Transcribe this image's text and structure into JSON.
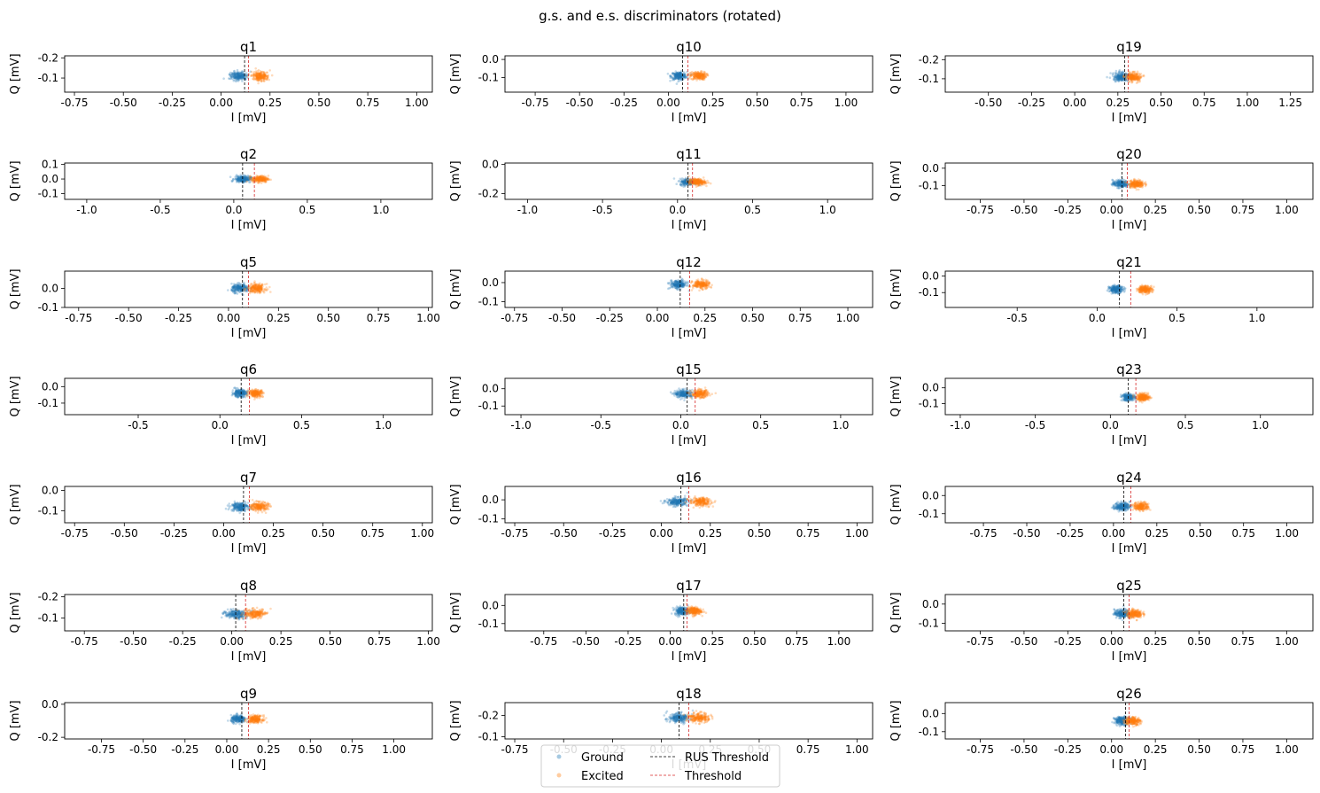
{
  "figure_title": "g.s. and e.s. discriminators (rotated)",
  "colors": {
    "ground": "#1f77b4",
    "excited": "#ff7f0e",
    "rus_threshold": "#000000",
    "threshold": "#d62728"
  },
  "legend": {
    "position": "bottom-center",
    "entries": [
      {
        "label": "Ground",
        "kind": "marker",
        "color": "#1f77b4"
      },
      {
        "label": "Excited",
        "kind": "marker",
        "color": "#ff7f0e"
      },
      {
        "label": "RUS Threshold",
        "kind": "line",
        "color": "#000000"
      },
      {
        "label": "Threshold",
        "kind": "line",
        "color": "#d62728"
      }
    ]
  },
  "chart_data": [
    {
      "type": "scatter",
      "title": "q1",
      "xlabel": "I [mV]",
      "ylabel": "Q [mV]",
      "xlim": [
        -0.8,
        1.08
      ],
      "ylim": [
        -0.21,
        -0.03
      ],
      "xticks": [
        "-0.75",
        "-0.50",
        "-0.25",
        "0.00",
        "0.25",
        "0.50",
        "0.75",
        "1.00"
      ],
      "yticks": [
        "-0.1",
        "-0.2"
      ],
      "y_inverted": true,
      "ground_center": [
        0.09,
        -0.11
      ],
      "excited_center": [
        0.2,
        -0.11
      ],
      "spread": [
        0.04,
        0.02
      ],
      "rus_threshold": 0.12,
      "threshold": 0.14
    },
    {
      "type": "scatter",
      "title": "q10",
      "xlabel": "I [mV]",
      "ylabel": "Q [mV]",
      "xlim": [
        -0.92,
        1.15
      ],
      "ylim": [
        -0.18,
        0.02
      ],
      "xticks": [
        "-0.75",
        "-0.50",
        "-0.25",
        "0.00",
        "0.25",
        "0.50",
        "0.75",
        "1.00"
      ],
      "yticks": [
        "0.0",
        "-0.1"
      ],
      "ground_center": [
        0.06,
        -0.09
      ],
      "excited_center": [
        0.17,
        -0.09
      ],
      "spread": [
        0.04,
        0.02
      ],
      "rus_threshold": 0.08,
      "threshold": 0.11
    },
    {
      "type": "scatter",
      "title": "q19",
      "xlabel": "I [mV]",
      "ylabel": "Q [mV]",
      "xlim": [
        -0.75,
        1.38
      ],
      "ylim": [
        -0.22,
        -0.03
      ],
      "xticks": [
        "-0.50",
        "-0.25",
        "0.00",
        "0.25",
        "0.50",
        "0.75",
        "1.00",
        "1.25"
      ],
      "yticks": [
        "-0.1",
        "-0.2"
      ],
      "y_inverted": true,
      "ground_center": [
        0.27,
        -0.11
      ],
      "excited_center": [
        0.34,
        -0.11
      ],
      "spread": [
        0.04,
        0.02
      ],
      "rus_threshold": 0.29,
      "threshold": 0.31
    },
    {
      "type": "scatter",
      "title": "q2",
      "xlabel": "I [mV]",
      "ylabel": "Q [mV]",
      "xlim": [
        -1.15,
        1.35
      ],
      "ylim": [
        -0.14,
        0.11
      ],
      "xticks": [
        "-1.0",
        "-0.5",
        "0.0",
        "0.5",
        "1.0"
      ],
      "yticks": [
        "0.1",
        "0.0",
        "-0.1"
      ],
      "ground_center": [
        0.06,
        0.0
      ],
      "excited_center": [
        0.18,
        0.0
      ],
      "spread": [
        0.05,
        0.02
      ],
      "rus_threshold": 0.06,
      "threshold": 0.14
    },
    {
      "type": "scatter",
      "title": "q11",
      "xlabel": "I [mV]",
      "ylabel": "Q [mV]",
      "xlim": [
        -1.15,
        1.3
      ],
      "ylim": [
        -0.24,
        0.01
      ],
      "xticks": [
        "-1.0",
        "-0.5",
        "0.0",
        "0.5",
        "1.0"
      ],
      "yticks": [
        "0.0",
        "-0.2"
      ],
      "ground_center": [
        0.07,
        -0.12
      ],
      "excited_center": [
        0.13,
        -0.12
      ],
      "spread": [
        0.05,
        0.02
      ],
      "rus_threshold": 0.07,
      "threshold": 0.1
    },
    {
      "type": "scatter",
      "title": "q20",
      "xlabel": "I [mV]",
      "ylabel": "Q [mV]",
      "xlim": [
        -0.95,
        1.15
      ],
      "ylim": [
        -0.18,
        0.03
      ],
      "xticks": [
        "-0.75",
        "-0.50",
        "-0.25",
        "0.00",
        "0.25",
        "0.50",
        "0.75",
        "1.00"
      ],
      "yticks": [
        "0.0",
        "-0.1"
      ],
      "ground_center": [
        0.05,
        -0.09
      ],
      "excited_center": [
        0.14,
        -0.09
      ],
      "spread": [
        0.04,
        0.02
      ],
      "rus_threshold": 0.06,
      "threshold": 0.09
    },
    {
      "type": "scatter",
      "title": "q5",
      "xlabel": "I [mV]",
      "ylabel": "Q [mV]",
      "xlim": [
        -0.82,
        1.02
      ],
      "ylim": [
        -0.1,
        0.09
      ],
      "xticks": [
        "-0.75",
        "-0.50",
        "-0.25",
        "0.00",
        "0.25",
        "0.50",
        "0.75",
        "1.00"
      ],
      "yticks": [
        "0.0",
        "-0.1"
      ],
      "ground_center": [
        0.06,
        0.0
      ],
      "excited_center": [
        0.14,
        0.0
      ],
      "spread": [
        0.04,
        0.02
      ],
      "rus_threshold": 0.07,
      "threshold": 0.1
    },
    {
      "type": "scatter",
      "title": "q12",
      "xlabel": "I [mV]",
      "ylabel": "Q [mV]",
      "xlim": [
        -0.8,
        1.13
      ],
      "ylim": [
        -0.13,
        0.06
      ],
      "xticks": [
        "-0.75",
        "-0.50",
        "-0.25",
        "0.00",
        "0.25",
        "0.50",
        "0.75",
        "1.00"
      ],
      "yticks": [
        "0.0",
        "-0.1"
      ],
      "ground_center": [
        0.11,
        -0.01
      ],
      "excited_center": [
        0.23,
        -0.01
      ],
      "spread": [
        0.04,
        0.02
      ],
      "rus_threshold": 0.12,
      "threshold": 0.17
    },
    {
      "type": "scatter",
      "title": "q21",
      "xlabel": "I [mV]",
      "ylabel": "Q [mV]",
      "xlim": [
        -0.95,
        1.35
      ],
      "ylim": [
        -0.19,
        0.03
      ],
      "xticks": [
        "-0.5",
        "0.0",
        "0.5",
        "1.0"
      ],
      "yticks": [
        "0.0",
        "-0.1"
      ],
      "ground_center": [
        0.12,
        -0.08
      ],
      "excited_center": [
        0.3,
        -0.08
      ],
      "spread": [
        0.04,
        0.02
      ],
      "rus_threshold": 0.14,
      "threshold": 0.21
    },
    {
      "type": "scatter",
      "title": "q6",
      "xlabel": "I [mV]",
      "ylabel": "Q [mV]",
      "xlim": [
        -0.95,
        1.3
      ],
      "ylim": [
        -0.17,
        0.05
      ],
      "xticks": [
        "-0.5",
        "0.0",
        "0.5",
        "1.0"
      ],
      "yticks": [
        "0.0",
        "-0.1"
      ],
      "ground_center": [
        0.12,
        -0.04
      ],
      "excited_center": [
        0.22,
        -0.04
      ],
      "spread": [
        0.04,
        0.02
      ],
      "rus_threshold": 0.13,
      "threshold": 0.18
    },
    {
      "type": "scatter",
      "title": "q15",
      "xlabel": "I [mV]",
      "ylabel": "Q [mV]",
      "xlim": [
        -1.1,
        1.2
      ],
      "ylim": [
        -0.15,
        0.06
      ],
      "xticks": [
        "-1.0",
        "-0.5",
        "0.0",
        "0.5",
        "1.0"
      ],
      "yticks": [
        "0.0",
        "-0.1"
      ],
      "ground_center": [
        0.02,
        -0.03
      ],
      "excited_center": [
        0.12,
        -0.03
      ],
      "spread": [
        0.05,
        0.02
      ],
      "rus_threshold": 0.04,
      "threshold": 0.09
    },
    {
      "type": "scatter",
      "title": "q23",
      "xlabel": "I [mV]",
      "ylabel": "Q [mV]",
      "xlim": [
        -1.1,
        1.35
      ],
      "ylim": [
        -0.17,
        0.06
      ],
      "xticks": [
        "-1.0",
        "-0.5",
        "0.0",
        "0.5",
        "1.0"
      ],
      "yticks": [
        "0.0",
        "-0.1"
      ],
      "ground_center": [
        0.12,
        -0.06
      ],
      "excited_center": [
        0.22,
        -0.06
      ],
      "spread": [
        0.04,
        0.02
      ],
      "rus_threshold": 0.12,
      "threshold": 0.17
    },
    {
      "type": "scatter",
      "title": "q7",
      "xlabel": "I [mV]",
      "ylabel": "Q [mV]",
      "xlim": [
        -0.8,
        1.05
      ],
      "ylim": [
        -0.16,
        0.02
      ],
      "xticks": [
        "-0.75",
        "-0.50",
        "-0.25",
        "0.00",
        "0.25",
        "0.50",
        "0.75",
        "1.00"
      ],
      "yticks": [
        "0.0",
        "-0.1"
      ],
      "ground_center": [
        0.08,
        -0.08
      ],
      "excited_center": [
        0.18,
        -0.08
      ],
      "spread": [
        0.04,
        0.02
      ],
      "rus_threshold": 0.1,
      "threshold": 0.13
    },
    {
      "type": "scatter",
      "title": "q16",
      "xlabel": "I [mV]",
      "ylabel": "Q [mV]",
      "xlim": [
        -0.8,
        1.08
      ],
      "ylim": [
        -0.12,
        0.07
      ],
      "xticks": [
        "-0.75",
        "-0.50",
        "-0.25",
        "0.00",
        "0.25",
        "0.50",
        "0.75",
        "1.00"
      ],
      "yticks": [
        "0.0",
        "-0.1"
      ],
      "ground_center": [
        0.08,
        -0.01
      ],
      "excited_center": [
        0.2,
        -0.01
      ],
      "spread": [
        0.05,
        0.02
      ],
      "rus_threshold": 0.1,
      "threshold": 0.14
    },
    {
      "type": "scatter",
      "title": "q24",
      "xlabel": "I [mV]",
      "ylabel": "Q [mV]",
      "xlim": [
        -0.97,
        1.15
      ],
      "ylim": [
        -0.15,
        0.05
      ],
      "xticks": [
        "-0.75",
        "-0.50",
        "-0.25",
        "0.00",
        "0.25",
        "0.50",
        "0.75",
        "1.00"
      ],
      "yticks": [
        "0.0",
        "-0.1"
      ],
      "ground_center": [
        0.05,
        -0.06
      ],
      "excited_center": [
        0.16,
        -0.06
      ],
      "spread": [
        0.04,
        0.02
      ],
      "rus_threshold": 0.06,
      "threshold": 0.1
    },
    {
      "type": "scatter",
      "title": "q8",
      "xlabel": "I [mV]",
      "ylabel": "Q [mV]",
      "xlim": [
        -0.85,
        1.02
      ],
      "ylim": [
        -0.21,
        -0.04
      ],
      "xticks": [
        "-0.75",
        "-0.50",
        "-0.25",
        "0.00",
        "0.25",
        "0.50",
        "0.75",
        "1.00"
      ],
      "yticks": [
        "-0.1",
        "-0.2"
      ],
      "y_inverted": true,
      "ground_center": [
        0.02,
        -0.12
      ],
      "excited_center": [
        0.12,
        -0.12
      ],
      "spread": [
        0.05,
        0.02
      ],
      "rus_threshold": 0.02,
      "threshold": 0.07
    },
    {
      "type": "scatter",
      "title": "q17",
      "xlabel": "I [mV]",
      "ylabel": "Q [mV]",
      "xlim": [
        -0.98,
        1.2
      ],
      "ylim": [
        -0.14,
        0.06
      ],
      "xticks": [
        "-0.75",
        "-0.50",
        "-0.25",
        "0.00",
        "0.25",
        "0.50",
        "0.75",
        "1.00"
      ],
      "yticks": [
        "0.0",
        "-0.1"
      ],
      "ground_center": [
        0.07,
        -0.03
      ],
      "excited_center": [
        0.14,
        -0.03
      ],
      "spread": [
        0.04,
        0.02
      ],
      "rus_threshold": 0.08,
      "threshold": 0.1
    },
    {
      "type": "scatter",
      "title": "q25",
      "xlabel": "I [mV]",
      "ylabel": "Q [mV]",
      "xlim": [
        -0.95,
        1.15
      ],
      "ylim": [
        -0.14,
        0.05
      ],
      "xticks": [
        "-0.75",
        "-0.50",
        "-0.25",
        "0.00",
        "0.25",
        "0.50",
        "0.75",
        "1.00"
      ],
      "yticks": [
        "0.0",
        "-0.1"
      ],
      "ground_center": [
        0.06,
        -0.05
      ],
      "excited_center": [
        0.13,
        -0.05
      ],
      "spread": [
        0.04,
        0.02
      ],
      "rus_threshold": 0.07,
      "threshold": 0.1
    },
    {
      "type": "scatter",
      "title": "q9",
      "xlabel": "I [mV]",
      "ylabel": "Q [mV]",
      "xlim": [
        -0.97,
        1.23
      ],
      "ylim": [
        -0.21,
        0.01
      ],
      "xticks": [
        "-0.75",
        "-0.50",
        "-0.25",
        "0.00",
        "0.25",
        "0.50",
        "0.75",
        "1.00"
      ],
      "yticks": [
        "0.0",
        "-0.2"
      ],
      "ground_center": [
        0.07,
        -0.09
      ],
      "excited_center": [
        0.17,
        -0.09
      ],
      "spread": [
        0.04,
        0.02
      ],
      "rus_threshold": 0.09,
      "threshold": 0.13
    },
    {
      "type": "scatter",
      "title": "q18",
      "xlabel": "I [mV]",
      "ylabel": "Q [mV]",
      "xlim": [
        -0.8,
        1.08
      ],
      "ylim": [
        -0.26,
        -0.09
      ],
      "xticks": [
        "-0.75",
        "-0.50",
        "-0.25",
        "0.00",
        "0.25",
        "0.50",
        "0.75",
        "1.00"
      ],
      "yticks": [
        "-0.1",
        "-0.2"
      ],
      "y_inverted": true,
      "ground_center": [
        0.09,
        -0.19
      ],
      "excited_center": [
        0.19,
        -0.19
      ],
      "spread": [
        0.05,
        0.02
      ],
      "rus_threshold": 0.09,
      "threshold": 0.14
    },
    {
      "type": "scatter",
      "title": "q26",
      "xlabel": "I [mV]",
      "ylabel": "Q [mV]",
      "xlim": [
        -0.95,
        1.15
      ],
      "ylim": [
        -0.14,
        0.06
      ],
      "xticks": [
        "-0.75",
        "-0.50",
        "-0.25",
        "0.00",
        "0.25",
        "0.50",
        "0.75",
        "1.00"
      ],
      "yticks": [
        "0.0",
        "-0.1"
      ],
      "ground_center": [
        0.06,
        -0.04
      ],
      "excited_center": [
        0.12,
        -0.04
      ],
      "spread": [
        0.04,
        0.02
      ],
      "rus_threshold": 0.08,
      "threshold": 0.1
    }
  ]
}
